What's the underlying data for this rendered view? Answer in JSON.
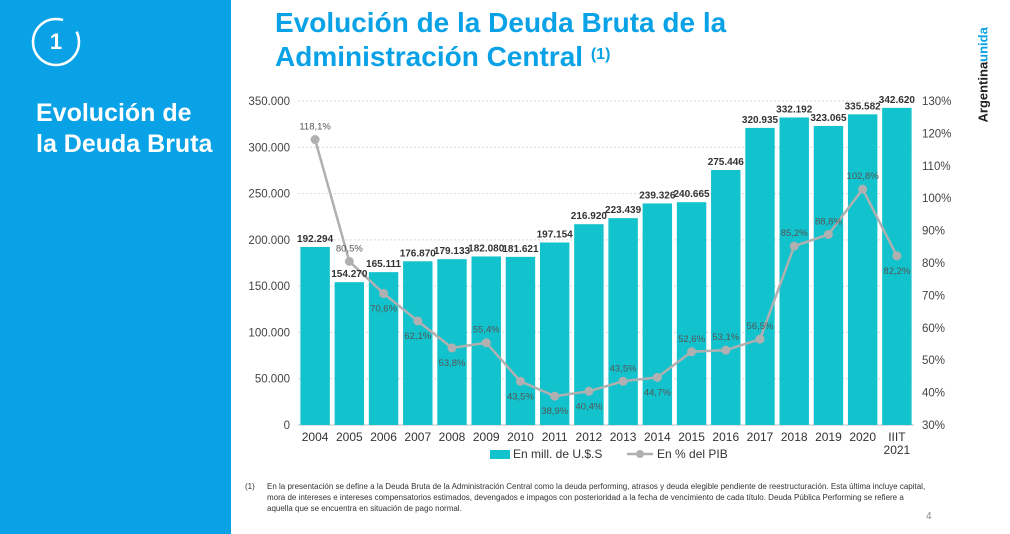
{
  "sidebar": {
    "section_number": "1",
    "title": "Evolución de la Deuda Bruta"
  },
  "header": {
    "title_line1": "Evolución de la Deuda Bruta de la",
    "title_line2": "Administración Central",
    "title_note": "(1)"
  },
  "brand": {
    "part1": "Argentina",
    "part2": "unida"
  },
  "colors": {
    "accent": "#0aa2e6",
    "bar": "#12c2cc",
    "line": "#b0b0b0"
  },
  "chart_data": {
    "type": "bar",
    "categories": [
      "2004",
      "2005",
      "2006",
      "2007",
      "2008",
      "2009",
      "2010",
      "2011",
      "2012",
      "2013",
      "2014",
      "2015",
      "2016",
      "2017",
      "2018",
      "2019",
      "2020",
      "IIIT 2021"
    ],
    "series": [
      {
        "name": "En mill. de U.$.S",
        "type": "bar",
        "axis": "left",
        "values": [
          192294,
          154270,
          165111,
          176870,
          179133,
          182080,
          181621,
          197154,
          216920,
          223439,
          239326,
          240665,
          275446,
          320935,
          332192,
          323065,
          335582,
          342620
        ],
        "labels": [
          "192.294",
          "154.270",
          "165.111",
          "176.870",
          "179.133",
          "182.080",
          "181.621",
          "197.154",
          "216.920",
          "223.439",
          "239.326",
          "240.665",
          "275.446",
          "320.935",
          "332.192",
          "323.065",
          "335.582",
          "342.620"
        ]
      },
      {
        "name": "En % del PIB",
        "type": "line",
        "axis": "right",
        "values": [
          118.1,
          80.5,
          70.6,
          62.1,
          53.8,
          55.4,
          43.5,
          38.9,
          40.4,
          43.5,
          44.7,
          52.6,
          53.1,
          56.5,
          85.2,
          88.8,
          102.8,
          82.2
        ],
        "labels": [
          "118,1%",
          "80,5%",
          "70,6%",
          "62,1%",
          "53,8%",
          "55,4%",
          "43,5%",
          "38,9%",
          "40,4%",
          "43,5%",
          "44,7%",
          "52,6%",
          "53,1%",
          "56,5%",
          "85,2%",
          "88,8%",
          "102,8%",
          "82,2%"
        ]
      }
    ],
    "y_left": {
      "range": [
        0,
        350000
      ],
      "ticks": [
        "0",
        "50.000",
        "100.000",
        "150.000",
        "200.000",
        "250.000",
        "300.000",
        "350.000"
      ]
    },
    "y_right": {
      "range": [
        30,
        130
      ],
      "ticks": [
        "30%",
        "40%",
        "50%",
        "60%",
        "70%",
        "80%",
        "90%",
        "100%",
        "110%",
        "120%",
        "130%"
      ]
    },
    "grid": true,
    "legend": {
      "position": "bottom",
      "items": [
        "En mill. de U.$.S",
        "En % del PIB"
      ]
    }
  },
  "footnote": {
    "mark": "(1)",
    "text": "En la presentación se define a la Deuda Bruta de la Administración Central como la deuda performing, atrasos y deuda elegible pendiente de reestructuración. Esta última incluye capital, mora de intereses e intereses compensatorios estimados, devengados e impagos con posterioridad a la fecha de vencimiento de cada título. Deuda Pública Performing se refiere a aquella que se encuentra en situación de pago normal."
  },
  "page_number": "4"
}
